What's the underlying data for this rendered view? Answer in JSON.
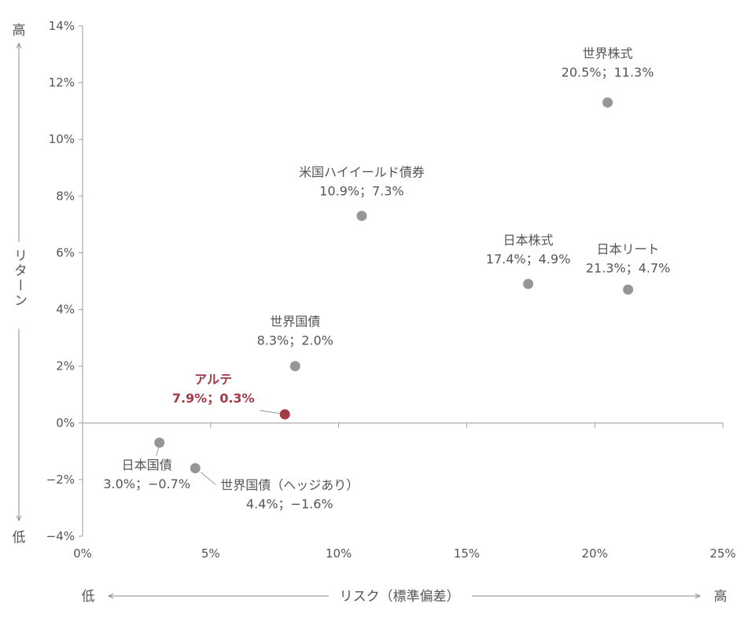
{
  "chart_data": {
    "type": "scatter",
    "x_axis": {
      "label": "リスク（標準偏差）",
      "low": "低",
      "high": "高",
      "min": 0,
      "max": 25,
      "step": 5,
      "tick_labels": [
        "0%",
        "5%",
        "10%",
        "15%",
        "20%",
        "25%"
      ]
    },
    "y_axis": {
      "label": "リターン",
      "low": "低",
      "high": "高",
      "min": -4,
      "max": 14,
      "step": 2,
      "tick_labels": [
        "−4%",
        "−2%",
        "0%",
        "2%",
        "4%",
        "6%",
        "8%",
        "10%",
        "12%",
        "14%"
      ]
    },
    "grid": false,
    "points": [
      {
        "name": "世界株式",
        "value_label": "20.5%；11.3%",
        "x": 20.5,
        "y": 11.3,
        "highlight": false,
        "color": "#969696"
      },
      {
        "name": "米国ハイイールド債券",
        "value_label": "10.9%；7.3%",
        "x": 10.9,
        "y": 7.3,
        "highlight": false,
        "color": "#969696"
      },
      {
        "name": "日本株式",
        "value_label": "17.4%；4.9%",
        "x": 17.4,
        "y": 4.9,
        "highlight": false,
        "color": "#969696"
      },
      {
        "name": "日本リート",
        "value_label": "21.3%；4.7%",
        "x": 21.3,
        "y": 4.7,
        "highlight": false,
        "color": "#969696"
      },
      {
        "name": "世界国債",
        "value_label": "8.3%；2.0%",
        "x": 8.3,
        "y": 2.0,
        "highlight": false,
        "color": "#969696"
      },
      {
        "name": "アルテ",
        "value_label": "7.9%；0.3%",
        "x": 7.9,
        "y": 0.3,
        "highlight": true,
        "color": "#a53a46"
      },
      {
        "name": "日本国債",
        "value_label": "3.0%；−0.7%",
        "x": 3.0,
        "y": -0.7,
        "highlight": false,
        "color": "#969696"
      },
      {
        "name": "世界国債（ヘッジあり）",
        "value_label": "4.4%；−1.6%",
        "x": 4.4,
        "y": -1.6,
        "highlight": false,
        "color": "#969696"
      }
    ]
  }
}
